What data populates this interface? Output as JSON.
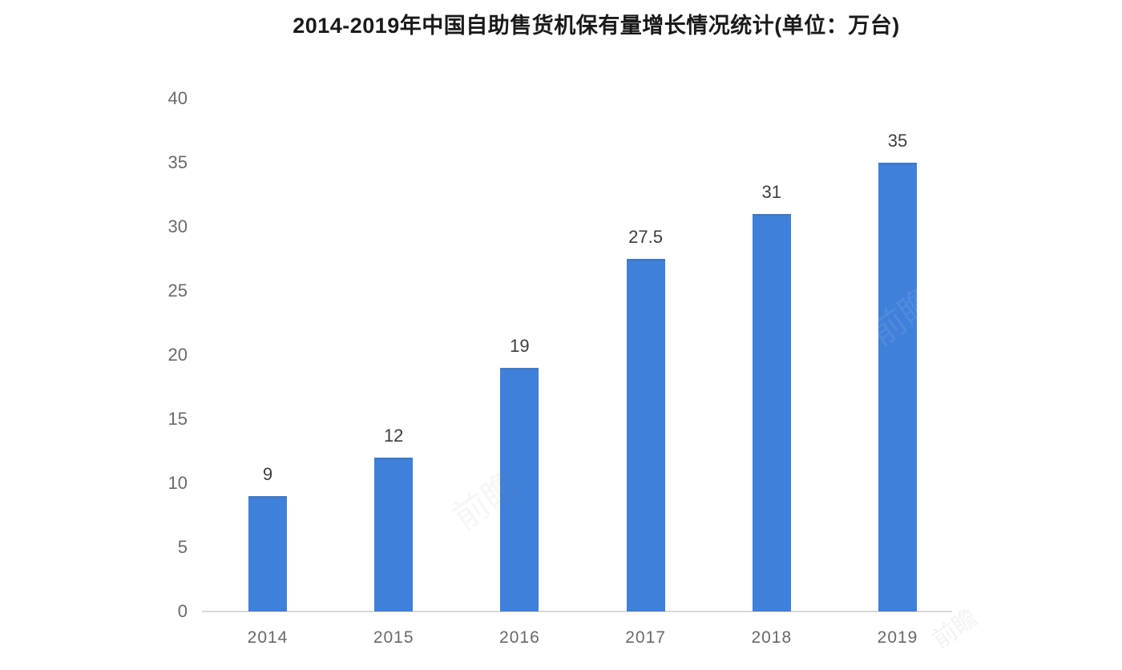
{
  "title": "2014-2019年中国自助售货机保有量增长情况统计(单位：万台)",
  "watermark": "前瞻",
  "colors": {
    "bar": "#3f80da",
    "axis_line": "#d9d9d9",
    "y_tick_label": "#6a6a6a",
    "x_tick_label": "#696969",
    "value_label": "#3d3d3d",
    "title": "#1a1a1a",
    "background": "#ffffff"
  },
  "chart_data": {
    "type": "bar",
    "title": "2014-2019年中国自助售货机保有量增长情况统计(单位：万台)",
    "categories": [
      "2014",
      "2015",
      "2016",
      "2017",
      "2018",
      "2019"
    ],
    "values": [
      9,
      12,
      19,
      27.5,
      31,
      35
    ],
    "value_labels": [
      "9",
      "12",
      "19",
      "27.5",
      "31",
      "35"
    ],
    "xlabel": "",
    "ylabel": "",
    "ylim": [
      0,
      40
    ],
    "yticks": [
      0,
      5,
      10,
      15,
      20,
      25,
      30,
      35,
      40
    ],
    "grid": false,
    "legend": "none",
    "unit": "万台"
  }
}
